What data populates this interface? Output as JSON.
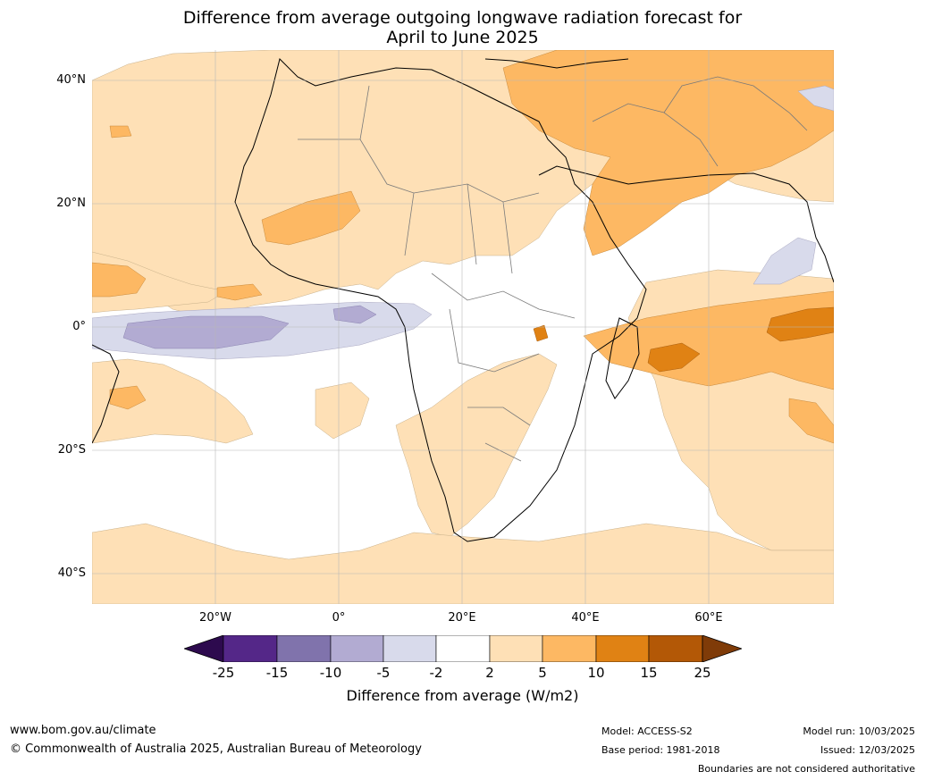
{
  "title": {
    "line1": "Difference from average outgoing longwave radiation forecast for",
    "line2": "April to June 2025"
  },
  "map": {
    "lat_labels": [
      "40°N",
      "20°N",
      "0°",
      "20°S",
      "40°S"
    ],
    "lon_labels": [
      "20°W",
      "0°",
      "20°E",
      "40°E",
      "60°E"
    ]
  },
  "legend": {
    "ticks": [
      "-25",
      "-15",
      "-10",
      "-5",
      "-2",
      "2",
      "5",
      "10",
      "15",
      "25"
    ],
    "colors": [
      "#2d0a4e",
      "#542788",
      "#8073ac",
      "#b2abd2",
      "#d8daeb",
      "#ffffff",
      "#fee0b6",
      "#fdb863",
      "#e08214",
      "#b35806",
      "#7f3b08"
    ],
    "title": "Difference from average (W/m2)"
  },
  "footer": {
    "website": "www.bom.gov.au/climate",
    "copyright": "© Commonwealth of Australia 2025, Australian Bureau of Meteorology",
    "model": "Model: ACCESS-S2",
    "base_period": "Base period: 1981-2018",
    "model_run": "Model run: 10/03/2025",
    "issued": "Issued: 12/03/2025",
    "disclaimer": "Boundaries are not considered authoritative"
  }
}
